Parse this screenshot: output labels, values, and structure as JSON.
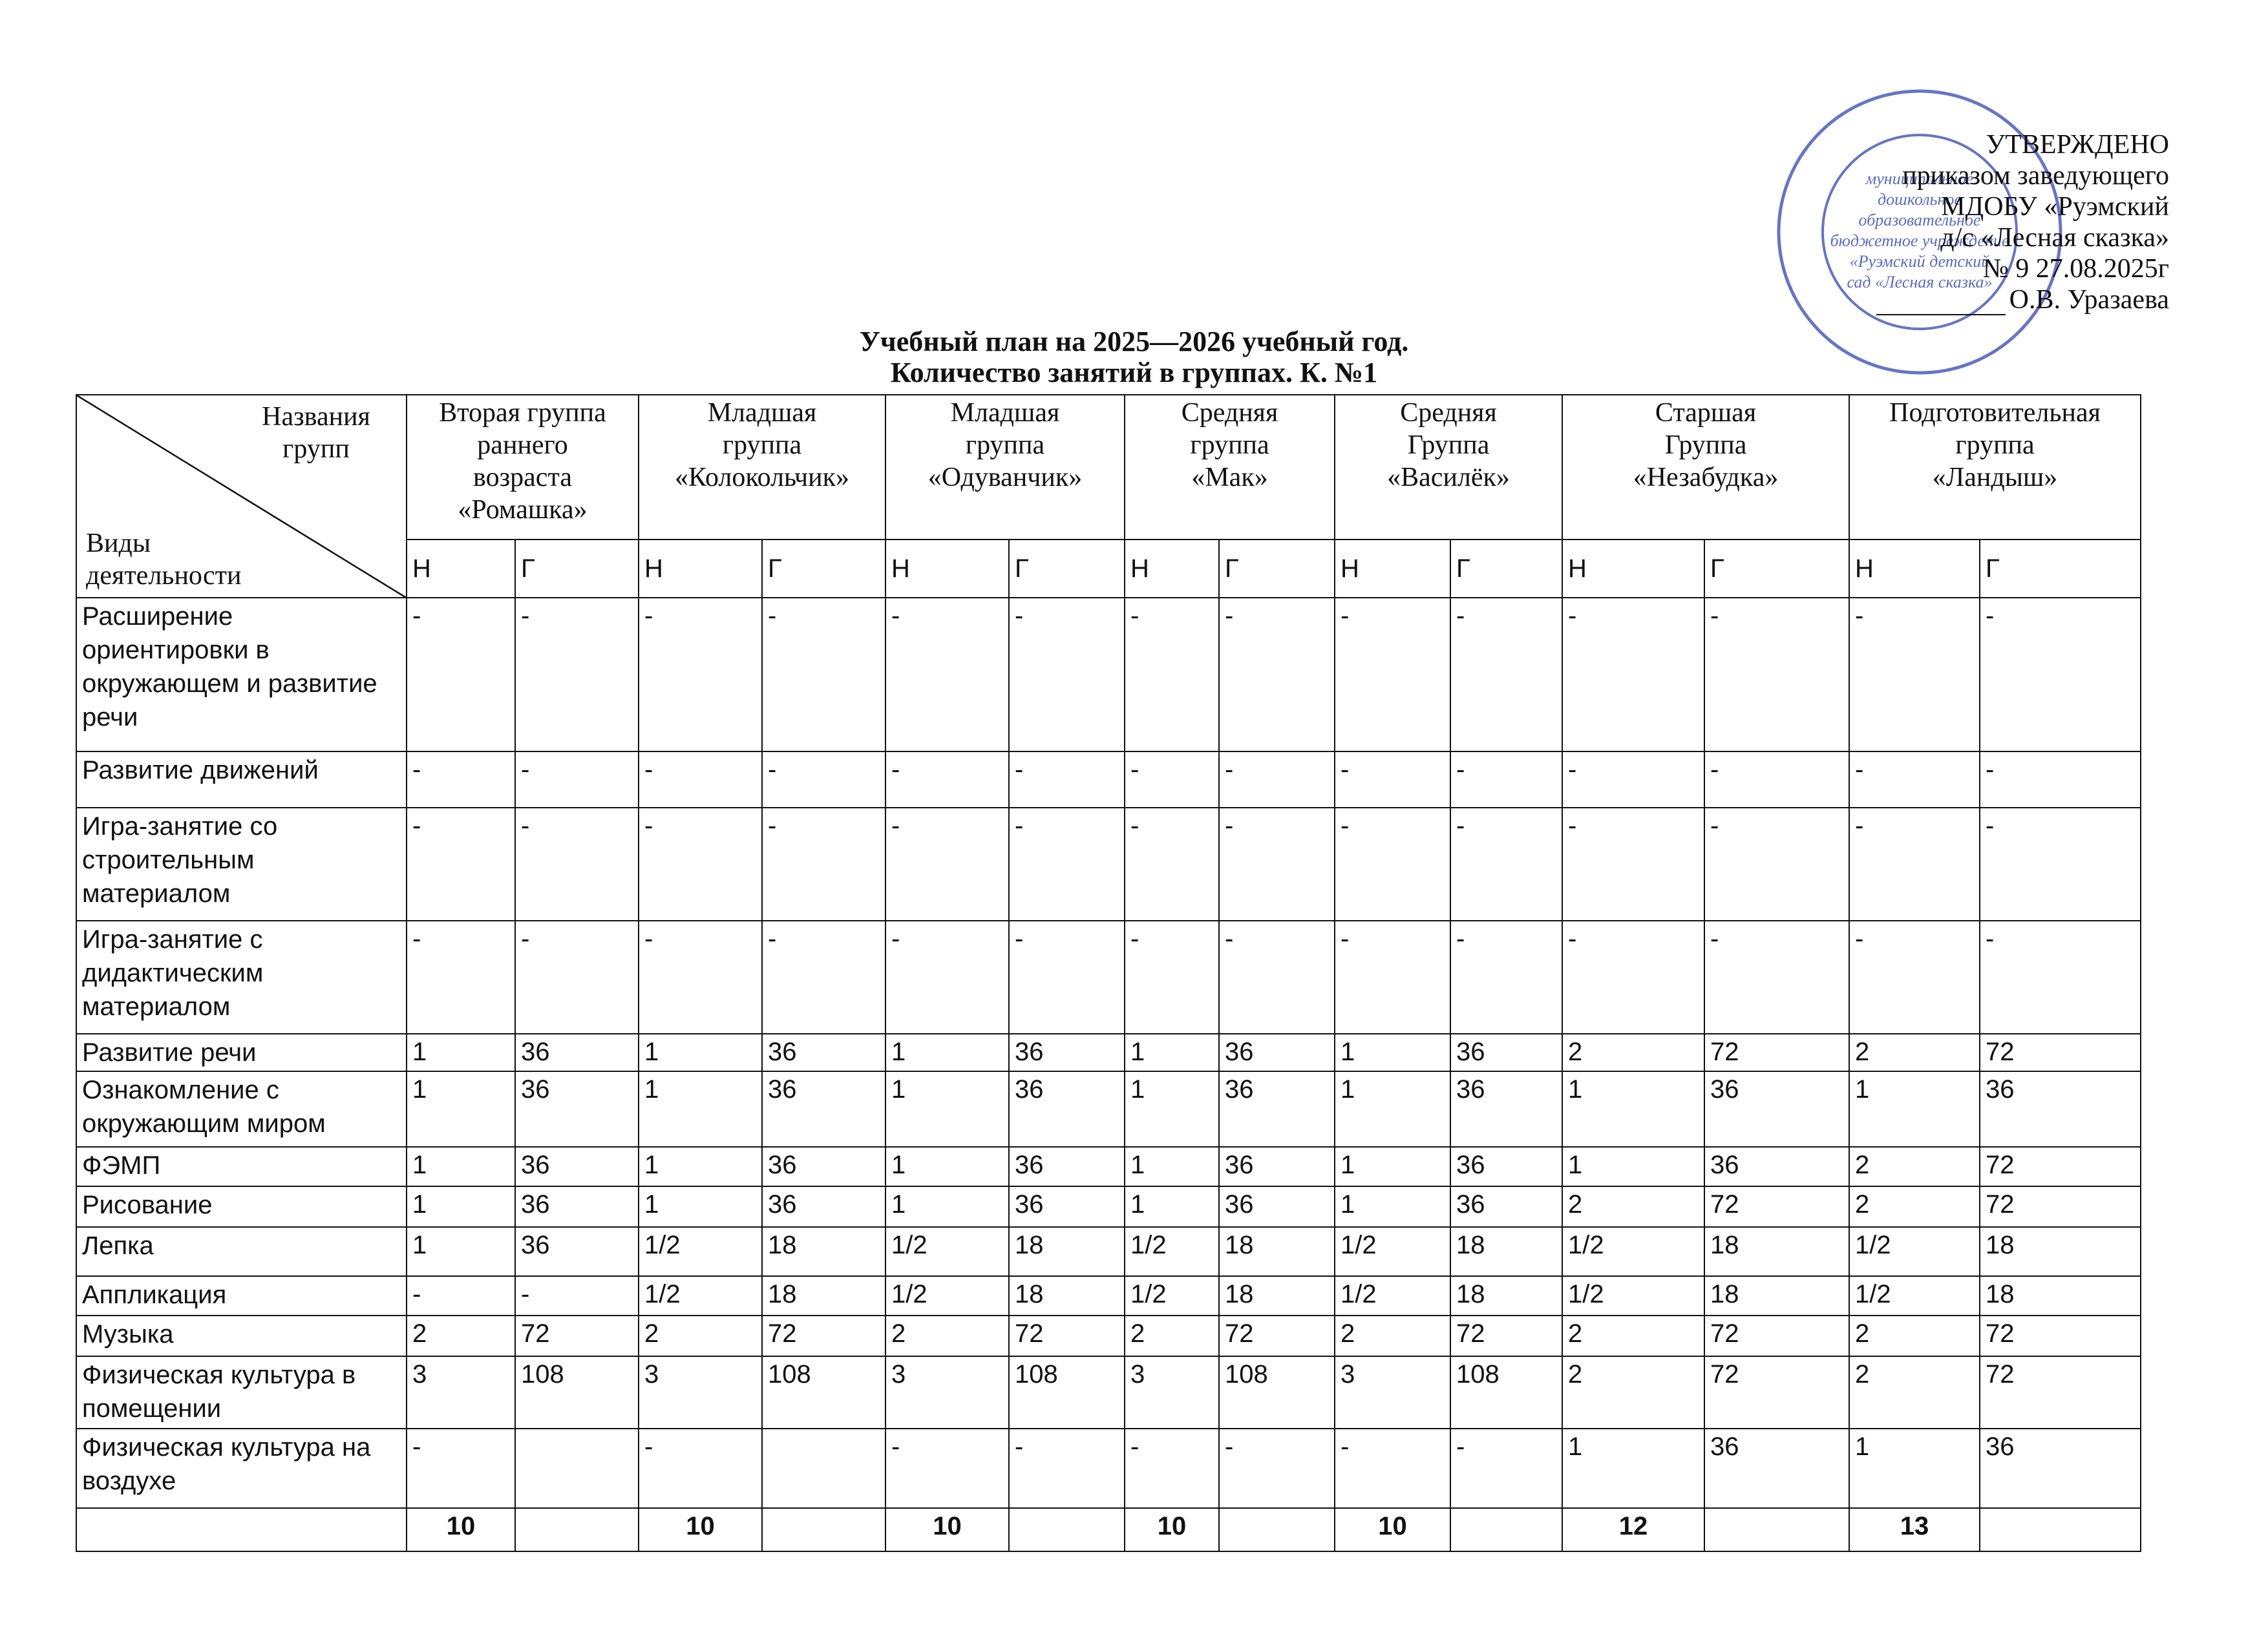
{
  "approval": {
    "lines": [
      "УТВЕРЖДЕНО",
      "приказом заведующего",
      "МДОБУ «Руэмский",
      "д/с «Лесная сказка»",
      "№ 9 27.08.2025г"
    ],
    "signer": "О.В. Уразаева"
  },
  "stamp": {
    "lines": [
      "муниципальное",
      "дошкольное",
      "образовательное",
      "бюджетное учреждение",
      "«Руэмский детский",
      "сад «Лесная сказка»"
    ]
  },
  "header": {
    "title": "Учебный план на 2025—2026 учебный год.",
    "subtitle": "Количество занятий в группах. К. №1"
  },
  "table": {
    "corner": {
      "top": "Названия групп",
      "bottom": "Виды деятельности"
    },
    "groups": [
      [
        "Вторая группа",
        "раннего",
        "возраста",
        "«Ромашка»"
      ],
      [
        "Младшая",
        "группа",
        "«Колокольчик»"
      ],
      [
        "Младшая",
        "группа",
        "«Одуванчик»"
      ],
      [
        "Средняя",
        "группа",
        "«Мак»"
      ],
      [
        "Средняя",
        "Группа",
        "«Василёк»"
      ],
      [
        "Старшая",
        "Группа",
        "«Незабудка»"
      ],
      [
        "Подготовительная",
        "группа",
        "«Ландыш»"
      ]
    ],
    "subheaders": [
      "Н",
      "Г",
      "Н",
      "Г",
      "Н",
      "Г",
      "Н",
      "Г",
      "Н",
      "Г",
      "Н",
      "Г",
      "Н",
      "Г"
    ],
    "rows": [
      {
        "name": "Расширение ориентировки в окружающем и развитие речи",
        "cells": [
          "-",
          "-",
          "-",
          "-",
          "-",
          "-",
          "-",
          "-",
          "-",
          "-",
          "-",
          "-",
          "-",
          "-"
        ]
      },
      {
        "name": "Развитие движений",
        "cells": [
          "-",
          "-",
          "-",
          "-",
          "-",
          "-",
          "-",
          "-",
          "-",
          "-",
          "-",
          "-",
          "-",
          "-"
        ]
      },
      {
        "name": "Игра-занятие со строительным материалом",
        "cells": [
          "-",
          "-",
          "-",
          "-",
          "-",
          "-",
          "-",
          "-",
          "-",
          "-",
          "-",
          "-",
          "-",
          "-"
        ]
      },
      {
        "name": "Игра-занятие с дидактическим материалом",
        "cells": [
          "-",
          "-",
          "-",
          "-",
          "-",
          "-",
          "-",
          "-",
          "-",
          "-",
          "-",
          "-",
          "-",
          "-"
        ]
      },
      {
        "name": "Развитие речи",
        "cells": [
          "1",
          "36",
          "1",
          "36",
          "1",
          "36",
          "1",
          "36",
          "1",
          "36",
          "2",
          "72",
          "2",
          "72"
        ]
      },
      {
        "name": "Ознакомление с окружающим миром",
        "cells": [
          "1",
          "36",
          "1",
          "36",
          "1",
          "36",
          "1",
          "36",
          "1",
          "36",
          "1",
          "36",
          "1",
          "36"
        ]
      },
      {
        "name": "ФЭМП",
        "cells": [
          "1",
          "36",
          "1",
          "36",
          "1",
          "36",
          "1",
          "36",
          "1",
          "36",
          "1",
          "36",
          "2",
          "72"
        ]
      },
      {
        "name": "Рисование",
        "cells": [
          "1",
          "36",
          "1",
          "36",
          "1",
          "36",
          "1",
          "36",
          "1",
          "36",
          "2",
          "72",
          "2",
          "72"
        ]
      },
      {
        "name": "Лепка",
        "cells": [
          "1",
          "36",
          "1/2",
          "18",
          "1/2",
          "18",
          "1/2",
          "18",
          "1/2",
          "18",
          "1/2",
          "18",
          "1/2",
          "18"
        ]
      },
      {
        "name": "Аппликация",
        "cells": [
          "-",
          "-",
          "1/2",
          "18",
          "1/2",
          "18",
          "1/2",
          "18",
          "1/2",
          "18",
          "1/2",
          "18",
          "1/2",
          "18"
        ]
      },
      {
        "name": "Музыка",
        "cells": [
          "2",
          "72",
          "2",
          "72",
          "2",
          "72",
          "2",
          "72",
          "2",
          "72",
          "2",
          "72",
          "2",
          "72"
        ]
      },
      {
        "name": "Физическая культура в помещении",
        "cells": [
          "3",
          "108",
          "3",
          "108",
          "3",
          "108",
          "3",
          "108",
          "3",
          "108",
          "2",
          "72",
          "2",
          "72"
        ]
      },
      {
        "name": "Физическая культура на воздухе",
        "cells": [
          "-",
          null,
          "-",
          null,
          "-",
          "-",
          "-",
          "-",
          "-",
          "-",
          "1",
          "36",
          "1",
          "36"
        ]
      }
    ],
    "total": {
      "cells": [
        "10",
        null,
        "10",
        null,
        "10",
        null,
        "10",
        null,
        "10",
        null,
        "12",
        null,
        "13",
        null
      ]
    }
  }
}
